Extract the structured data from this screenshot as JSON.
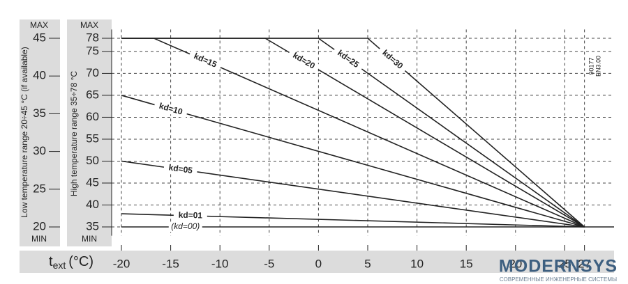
{
  "chart_data": {
    "type": "line",
    "x_label": {
      "symbol": "t",
      "subscript": "ext",
      "unit": "(°C)"
    },
    "y_label": "High temperature range 35÷78 °C",
    "y2_label": "Low temperature range 20÷45 °C (if available)",
    "max_label": "MAX",
    "min_label": "MIN",
    "code_labels": [
      "90177",
      "EN3.00"
    ],
    "watermark": {
      "brand": "MODERNSYS",
      "tagline": "СОВРЕМЕННЫЕ ИНЖЕНЕРНЫЕ СИСТЕМЫ"
    },
    "xlim": [
      -20,
      30
    ],
    "xticks": [
      -20,
      -15,
      -10,
      -5,
      0,
      5,
      10,
      15,
      20,
      25,
      27
    ],
    "ylim": [
      33,
      80
    ],
    "yticks": [
      35,
      40,
      45,
      50,
      55,
      60,
      65,
      70,
      75,
      78
    ],
    "y2lim": [
      18.84,
      46.16
    ],
    "y2ticks": [
      20,
      25,
      30,
      35,
      40,
      45
    ],
    "grid": true,
    "series": [
      {
        "name": "(kd=00)",
        "color": "#222222",
        "x": [
          -20,
          30
        ],
        "values": [
          35,
          35
        ]
      },
      {
        "name": "kd=01",
        "color": "#222222",
        "x": [
          -20,
          27
        ],
        "values": [
          38,
          35
        ]
      },
      {
        "name": "kd=05",
        "color": "#222222",
        "x": [
          -20,
          27
        ],
        "values": [
          50,
          35
        ]
      },
      {
        "name": "kd=10",
        "color": "#222222",
        "x": [
          -20,
          27
        ],
        "values": [
          65,
          35
        ]
      },
      {
        "name": "kd=15",
        "color": "#222222",
        "x": [
          -20,
          -16.7,
          27
        ],
        "values": [
          78,
          78,
          35
        ]
      },
      {
        "name": "kd=20",
        "color": "#222222",
        "x": [
          -20,
          -5.4,
          27
        ],
        "values": [
          78,
          78,
          35
        ]
      },
      {
        "name": "kd=25",
        "color": "#222222",
        "x": [
          -20,
          0,
          27
        ],
        "values": [
          78,
          78,
          35
        ]
      },
      {
        "name": "kd=30",
        "color": "#222222",
        "x": [
          -20,
          5,
          27
        ],
        "values": [
          78,
          78,
          35
        ]
      }
    ]
  }
}
